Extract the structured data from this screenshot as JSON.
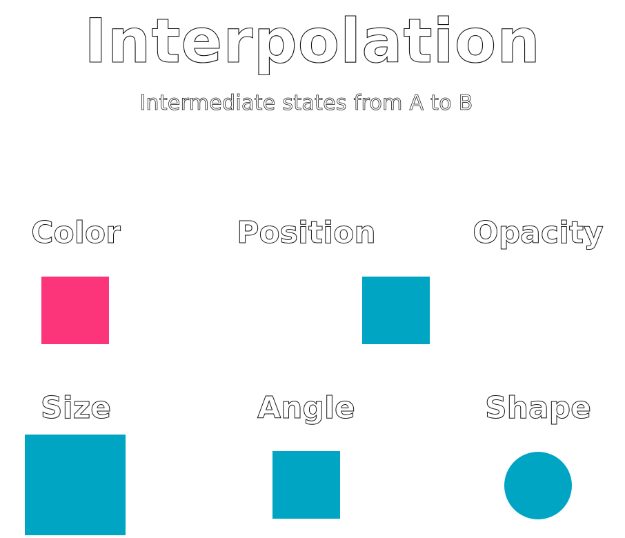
{
  "title": "Interpolation",
  "subtitle": "Intermediate states from A to B",
  "colors": {
    "teal": "#00a5c3",
    "pink": "#fc357a"
  },
  "panels": [
    {
      "label": "Color",
      "shape": "square",
      "color": "#fc357a"
    },
    {
      "label": "Position",
      "shape": "square",
      "color": "#00a5c3"
    },
    {
      "label": "Opacity",
      "shape": "square",
      "color": "#00a5c3",
      "opacity": 0
    },
    {
      "label": "Size",
      "shape": "square",
      "color": "#00a5c3"
    },
    {
      "label": "Angle",
      "shape": "square",
      "color": "#00a5c3"
    },
    {
      "label": "Shape",
      "shape": "circle",
      "color": "#00a5c3"
    }
  ]
}
